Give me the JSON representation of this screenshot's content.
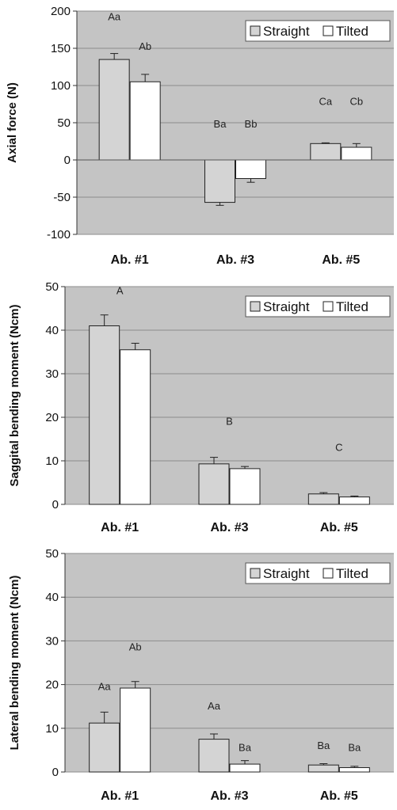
{
  "chart_data": [
    {
      "type": "bar",
      "ylabel": "Axial force (N)",
      "categories": [
        "Ab. #1",
        "Ab. #3",
        "Ab. #5"
      ],
      "ylim": [
        -100,
        200
      ],
      "yticks": [
        -100,
        -50,
        0,
        50,
        100,
        150,
        200
      ],
      "grid": true,
      "legend_position": "top-right",
      "series": [
        {
          "name": "Straight",
          "values": [
            135,
            -57,
            22
          ],
          "errors": [
            8,
            4,
            1
          ],
          "color": "#d4d4d4"
        },
        {
          "name": "Tilted",
          "values": [
            105,
            -25,
            17
          ],
          "errors": [
            10,
            5,
            5
          ],
          "color": "#ffffff"
        }
      ],
      "annotations": [
        {
          "text": "Aa",
          "category": 0,
          "series": 0,
          "y": 192
        },
        {
          "text": "Ab",
          "category": 0,
          "series": 1,
          "y": 152
        },
        {
          "text": "Ba",
          "category": 1,
          "series": 0,
          "y": 48
        },
        {
          "text": "Bb",
          "category": 1,
          "series": 1,
          "y": 48
        },
        {
          "text": "Ca",
          "category": 2,
          "series": 0,
          "y": 78
        },
        {
          "text": "Cb",
          "category": 2,
          "series": 1,
          "y": 78
        }
      ]
    },
    {
      "type": "bar",
      "ylabel": "Saggital bending moment (Ncm)",
      "categories": [
        "Ab. #1",
        "Ab. #3",
        "Ab. #5"
      ],
      "ylim": [
        0,
        50
      ],
      "yticks": [
        0,
        10,
        20,
        30,
        40,
        50
      ],
      "grid": true,
      "legend_position": "top-right",
      "series": [
        {
          "name": "Straight",
          "values": [
            41,
            9.3,
            2.4
          ],
          "errors": [
            2.5,
            1.5,
            0.3
          ],
          "color": "#d4d4d4"
        },
        {
          "name": "Tilted",
          "values": [
            35.5,
            8.2,
            1.7
          ],
          "errors": [
            1.5,
            0.5,
            0.2
          ],
          "color": "#ffffff"
        }
      ],
      "annotations": [
        {
          "text": "A",
          "category": 0,
          "series": -1,
          "y": 49
        },
        {
          "text": "B",
          "category": 1,
          "series": -1,
          "y": 19
        },
        {
          "text": "C",
          "category": 2,
          "series": -1,
          "y": 13
        }
      ]
    },
    {
      "type": "bar",
      "ylabel": "Lateral bending moment (Ncm)",
      "categories": [
        "Ab. #1",
        "Ab. #3",
        "Ab. #5"
      ],
      "ylim": [
        0,
        50
      ],
      "yticks": [
        0,
        10,
        20,
        30,
        40,
        50
      ],
      "grid": true,
      "legend_position": "top-right",
      "series": [
        {
          "name": "Straight",
          "values": [
            11.2,
            7.5,
            1.6
          ],
          "errors": [
            2.5,
            1.2,
            0.3
          ],
          "color": "#d4d4d4"
        },
        {
          "name": "Tilted",
          "values": [
            19.2,
            1.8,
            1.0
          ],
          "errors": [
            1.5,
            0.8,
            0.3
          ],
          "color": "#ffffff"
        }
      ],
      "annotations": [
        {
          "text": "Aa",
          "category": 0,
          "series": 0,
          "y": 19.5
        },
        {
          "text": "Ab",
          "category": 0,
          "series": 1,
          "y": 28.5
        },
        {
          "text": "Aa",
          "category": 1,
          "series": 0,
          "y": 15
        },
        {
          "text": "Ba",
          "category": 1,
          "series": 1,
          "y": 5.5
        },
        {
          "text": "Ba",
          "category": 2,
          "series": 0,
          "y": 6
        },
        {
          "text": "Ba",
          "category": 2,
          "series": 1,
          "y": 5.5
        }
      ]
    }
  ]
}
